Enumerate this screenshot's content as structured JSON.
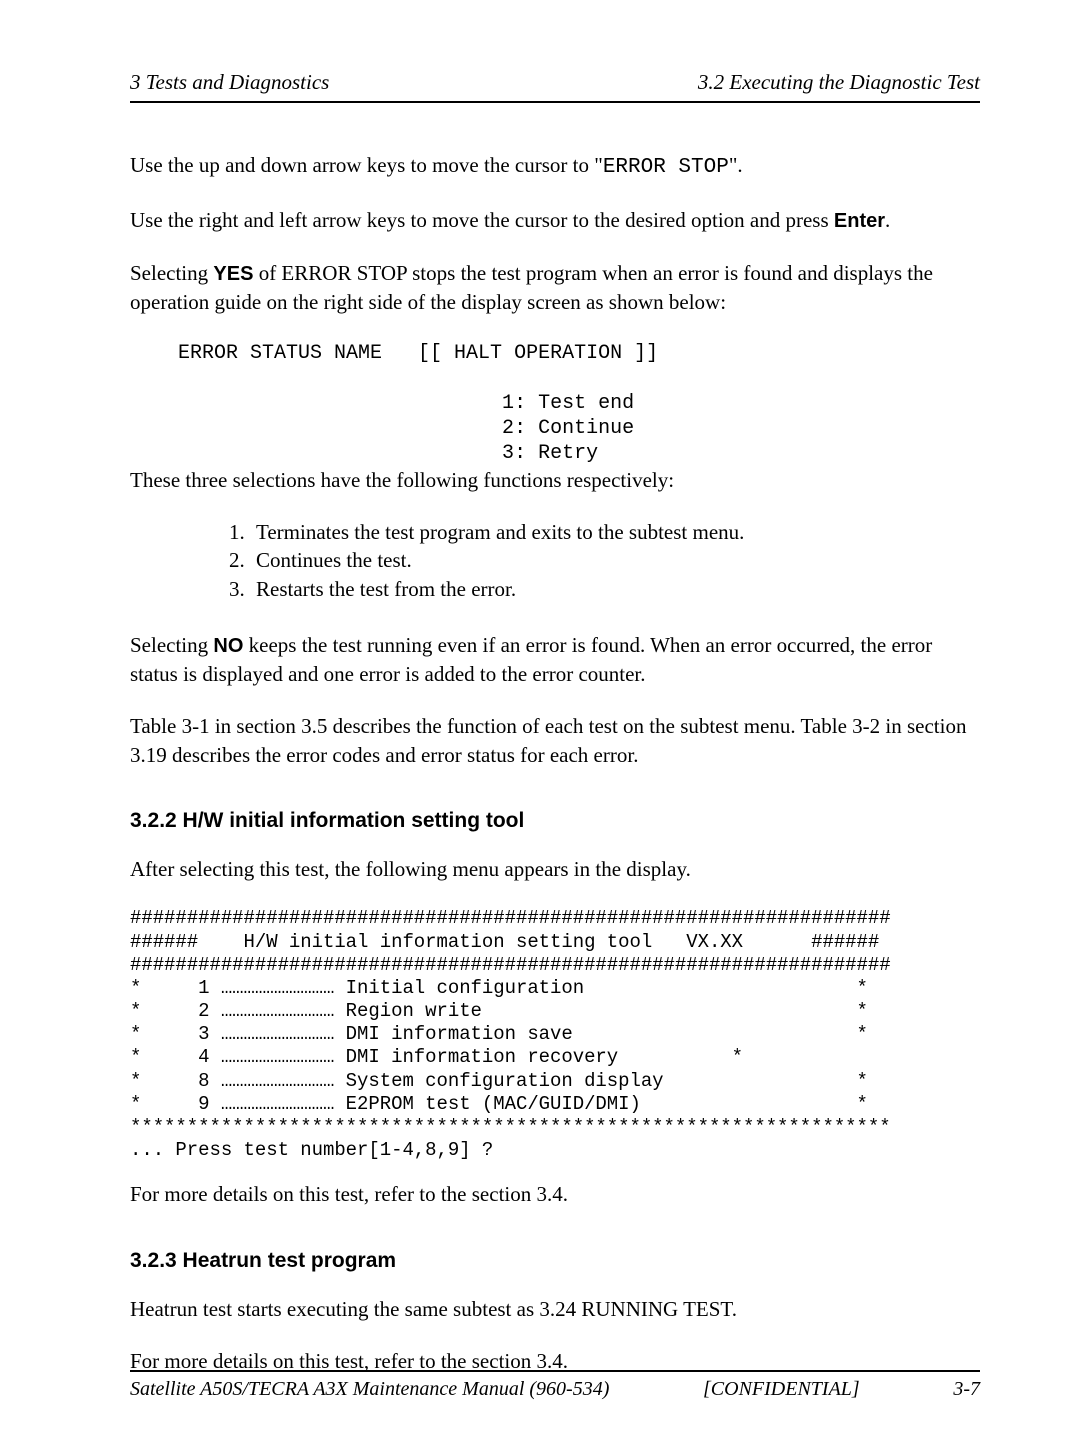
{
  "header": {
    "left": "3 Tests and Diagnostics",
    "right": "3.2 Executing the Diagnostic Test"
  },
  "para1_a": "Use the up and down arrow keys to move the cursor to \"",
  "para1_code": "ERROR STOP",
  "para1_b": "\".",
  "para2_a": "Use the right and left arrow keys to move the cursor to the desired option and press ",
  "para2_bold": "Enter",
  "para2_b": ".",
  "para3_a": "Selecting ",
  "para3_bold": "YES",
  "para3_b": " of ERROR STOP stops the test program when an error is found and displays the operation guide on the right side of the display screen as shown below:",
  "errorblock": "    ERROR STATUS NAME   [[ HALT OPERATION ]]\n\n                               1: Test end\n                               2: Continue\n                               3: Retry",
  "para4": "These three selections have the following functions respectively:",
  "list": {
    "i1": "Terminates the test program and exits to the subtest menu.",
    "i2": "Continues the test.",
    "i3": "Restarts the test from the error."
  },
  "para5_a": "Selecting ",
  "para5_bold": "NO",
  "para5_b": " keeps the test running even if an error is found. When an error occurred, the error status is displayed and one error is added to the error counter.",
  "para6": "Table 3-1 in section 3.5 describes the function of each test on the subtest menu. Table 3-2 in section 3.19 describes the error codes and error status for each error.",
  "heading1": "3.2.2  H/W initial information setting tool",
  "para7": "After selecting this test, the following menu appears in the display.",
  "menu": "###################################################################\n######    H/W initial information setting tool   VX.XX      ######\n###################################################################\n*     1 ………………………… Initial configuration                        *\n*     2 ………………………… Region write                                 *\n*     3 ………………………… DMI information save                         *\n*     4 ………………………… DMI information recovery          *\n*     8 ………………………… System configuration display                 *\n*     9 ………………………… E2PROM test (MAC/GUID/DMI)                   *\n*******************************************************************\n... Press test number[1-4,8,9] ?",
  "para8": "For more details on this test, refer to the section 3.4.",
  "heading2": "3.2.3  Heatrun test program",
  "para9": "Heatrun test starts executing the same subtest as 3.24 RUNNING TEST.",
  "para10": "For more details on this test, refer to the section 3.4.",
  "footer": {
    "left": "Satellite A50S/TECRA A3X  Maintenance Manual (960-534)",
    "mid": "[CONFIDENTIAL]",
    "right": "3-7"
  }
}
